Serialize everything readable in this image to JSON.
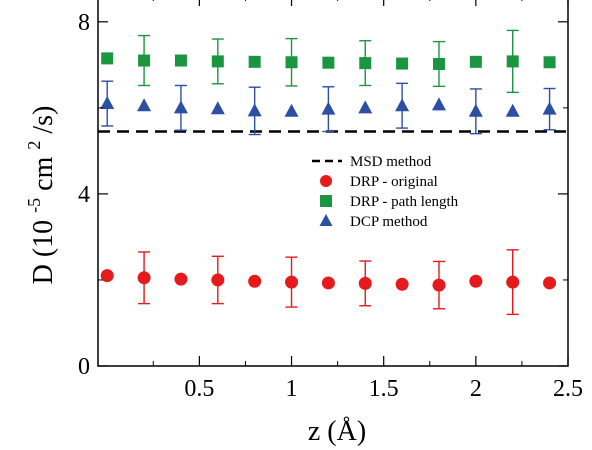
{
  "chart_data": {
    "type": "scatter",
    "xlabel": "z (Å)",
    "ylabel": {
      "prefix": "D (10",
      "exp1": "-5",
      "mid": " cm",
      "exp2": "2",
      "suffix": "/s)"
    },
    "xlim": [
      -0.05,
      2.5
    ],
    "ylim": [
      0,
      8.6
    ],
    "xticks": [
      0.5,
      1,
      1.5,
      2,
      2.5
    ],
    "xtick_labels": [
      "0.5",
      "1",
      "1.5",
      "2",
      "2.5"
    ],
    "yticks": [
      0,
      4,
      8
    ],
    "ytick_labels": [
      "0",
      "4",
      "8"
    ],
    "reference_line": {
      "name": "MSD method",
      "y": 5.45,
      "color": "#000000"
    },
    "series": [
      {
        "name": "DRP - original",
        "marker": "circle",
        "color": "#e41a1c",
        "points": [
          {
            "x": 0.0,
            "y": 2.1
          },
          {
            "x": 0.2,
            "y": 2.05,
            "err": 0.6
          },
          {
            "x": 0.4,
            "y": 2.02
          },
          {
            "x": 0.6,
            "y": 2.0,
            "err": 0.55
          },
          {
            "x": 0.8,
            "y": 1.97
          },
          {
            "x": 1.0,
            "y": 1.95,
            "err": 0.58
          },
          {
            "x": 1.2,
            "y": 1.93
          },
          {
            "x": 1.4,
            "y": 1.92,
            "err": 0.52
          },
          {
            "x": 1.6,
            "y": 1.9
          },
          {
            "x": 1.8,
            "y": 1.88,
            "err": 0.55
          },
          {
            "x": 2.0,
            "y": 1.97
          },
          {
            "x": 2.2,
            "y": 1.95,
            "err": 0.75
          },
          {
            "x": 2.4,
            "y": 1.93
          }
        ]
      },
      {
        "name": "DRP - path length",
        "marker": "square",
        "color": "#1a9641",
        "points": [
          {
            "x": 0.0,
            "y": 7.15
          },
          {
            "x": 0.2,
            "y": 7.1,
            "err": 0.58
          },
          {
            "x": 0.4,
            "y": 7.1
          },
          {
            "x": 0.6,
            "y": 7.08,
            "err": 0.52
          },
          {
            "x": 0.8,
            "y": 7.07
          },
          {
            "x": 1.0,
            "y": 7.06,
            "err": 0.55
          },
          {
            "x": 1.2,
            "y": 7.05
          },
          {
            "x": 1.4,
            "y": 7.04,
            "err": 0.52
          },
          {
            "x": 1.6,
            "y": 7.03
          },
          {
            "x": 1.8,
            "y": 7.02,
            "err": 0.52
          },
          {
            "x": 2.0,
            "y": 7.07
          },
          {
            "x": 2.2,
            "y": 7.08,
            "err": 0.72
          },
          {
            "x": 2.4,
            "y": 7.06
          }
        ]
      },
      {
        "name": "DCP method",
        "marker": "triangle",
        "color": "#2c4fa3",
        "points": [
          {
            "x": 0.0,
            "y": 6.1,
            "err": 0.52
          },
          {
            "x": 0.2,
            "y": 6.05
          },
          {
            "x": 0.4,
            "y": 6.0,
            "err": 0.52
          },
          {
            "x": 0.6,
            "y": 5.98
          },
          {
            "x": 0.8,
            "y": 5.93,
            "err": 0.55
          },
          {
            "x": 1.0,
            "y": 5.92
          },
          {
            "x": 1.2,
            "y": 5.97,
            "err": 0.52
          },
          {
            "x": 1.4,
            "y": 6.0
          },
          {
            "x": 1.6,
            "y": 6.05,
            "err": 0.52
          },
          {
            "x": 1.8,
            "y": 6.07
          },
          {
            "x": 2.0,
            "y": 5.92,
            "err": 0.52
          },
          {
            "x": 2.2,
            "y": 5.92
          },
          {
            "x": 2.4,
            "y": 5.97,
            "err": 0.48
          }
        ]
      }
    ],
    "legend": {
      "placement": "center-right"
    }
  }
}
